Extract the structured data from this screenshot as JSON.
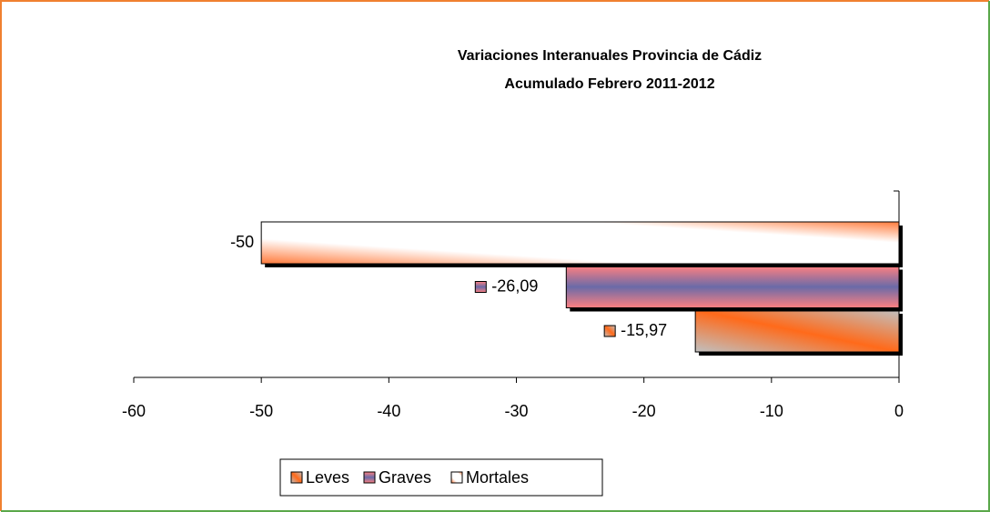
{
  "chart_data": {
    "type": "bar",
    "orientation": "horizontal",
    "title": "Variaciones Interanuales Provincia de Cádiz",
    "subtitle": "Acumulado Febrero 2011-2012",
    "categories": [
      null
    ],
    "series": [
      {
        "name": "Leves",
        "color": "#ff6a1a",
        "values": [
          -15.97
        ],
        "value_labels": [
          "-15,97"
        ]
      },
      {
        "name": "Graves",
        "color": "#ff8080",
        "values": [
          -26.09
        ],
        "value_labels": [
          "-26,09"
        ]
      },
      {
        "name": "Mortales",
        "color": "#ff7a3a",
        "values": [
          -50
        ]
      }
    ],
    "xlim": [
      -60,
      0
    ],
    "xticks": [
      -60,
      -50,
      -40,
      -30,
      -20,
      -10,
      0
    ],
    "legend": "bottom",
    "grid": false
  }
}
